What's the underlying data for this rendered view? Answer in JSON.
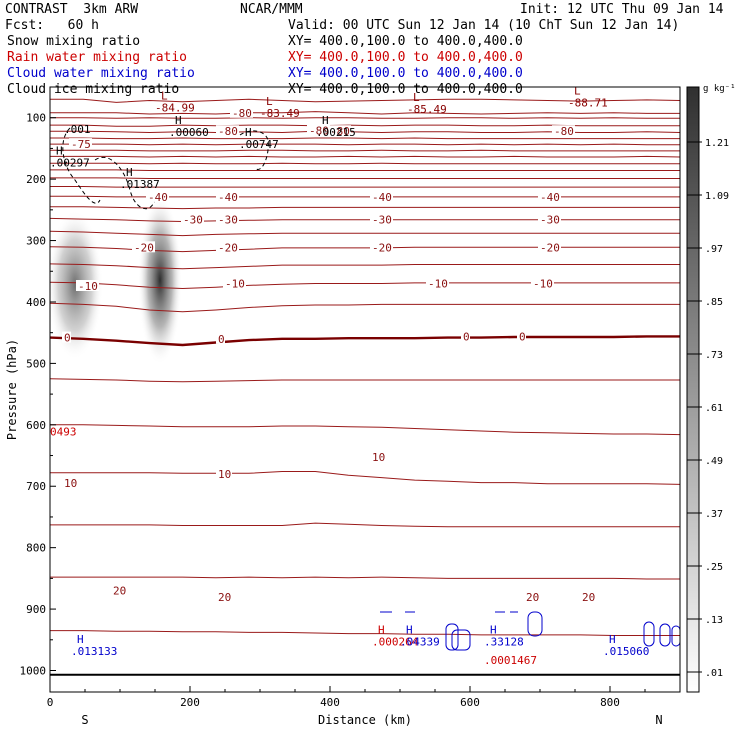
{
  "header": {
    "model": "CONTRAST  3km ARW",
    "org": "NCAR/MMM",
    "init": "Init: 12 UTC Thu 09 Jan 14",
    "fcst": "Fcst:   60 h",
    "valid": "Valid: 00 UTC Sun 12 Jan 14 (10 ChT Sun 12 Jan 14)",
    "fields": [
      {
        "name": "Snow mixing ratio",
        "xy": "XY= 400.0,100.0 to 400.0,400.0",
        "color": "#000000"
      },
      {
        "name": "Rain water mixing ratio",
        "xy": "XY= 400.0,100.0 to 400.0,400.0",
        "color": "#cc0000"
      },
      {
        "name": "Cloud water mixing ratio",
        "xy": "XY= 400.0,100.0 to 400.0,400.0",
        "color": "#0000cc"
      },
      {
        "name": "Cloud ice mixing ratio",
        "xy": "XY= 400.0,100.0 to 400.0,400.0",
        "color": "#000000"
      }
    ]
  },
  "chart_data": {
    "type": "contour-cross-section",
    "xlabel": "Distance (km)",
    "ylabel": "Pressure (hPa)",
    "x_ticks": [
      0,
      200,
      400,
      600,
      800
    ],
    "x_range": [
      0,
      900
    ],
    "y_ticks": [
      100,
      200,
      300,
      400,
      500,
      600,
      700,
      800,
      900,
      1000
    ],
    "y_range": [
      50,
      1035
    ],
    "x_end_labels": {
      "left": "S",
      "right": "N"
    },
    "colorbar": {
      "unit": "g kg⁻¹",
      "levels": [
        "1.21",
        "1.09",
        ".97",
        ".85",
        ".73",
        ".61",
        ".49",
        ".37",
        ".25",
        ".13",
        ".01"
      ]
    },
    "temperature_contours": [
      {
        "value": -80,
        "label": "-80",
        "p": [
          70,
          70,
          75,
          72,
          74,
          72,
          70,
          72,
          74,
          73,
          72,
          71,
          70,
          70,
          71,
          72,
          73,
          72,
          71,
          72
        ]
      },
      {
        "value": -80,
        "label": "-80",
        "p": [
          92,
          92,
          92,
          94,
          93,
          94,
          92,
          92,
          90,
          92,
          94,
          92,
          93,
          94,
          93,
          92,
          93,
          92,
          93,
          93
        ]
      },
      {
        "value": -80,
        "label": "-80",
        "p": [
          100,
          100,
          101,
          100,
          101,
          101,
          100,
          101,
          100,
          100,
          101,
          101,
          100,
          100,
          101,
          100,
          101,
          100,
          101,
          101
        ]
      },
      {
        "value": -80,
        "label": "-80",
        "p": [
          112,
          112,
          114,
          114,
          112,
          113,
          112,
          112,
          113,
          112,
          113,
          112,
          112,
          113,
          113,
          112,
          113,
          113,
          113,
          113
        ]
      },
      {
        "value": -80,
        "label": "-80",
        "p": [
          122,
          122,
          123,
          124,
          123,
          124,
          123,
          124,
          122,
          123,
          124,
          123,
          123,
          124,
          124,
          123,
          124,
          124,
          123,
          124
        ]
      },
      {
        "value": -80,
        "label": "-80",
        "p": [
          133,
          133,
          134,
          134,
          133,
          134,
          134,
          134,
          133,
          133,
          134,
          133,
          134,
          134,
          134,
          134,
          134,
          134,
          134,
          134
        ]
      },
      {
        "value": -75,
        "label": "-75",
        "p": [
          143,
          143,
          143,
          144,
          143,
          144,
          143,
          143,
          143,
          144,
          143,
          143,
          144,
          143,
          144,
          143,
          144,
          143,
          144,
          144
        ]
      },
      {
        "value": -70,
        "label": "",
        "p": [
          153,
          153,
          153,
          154,
          154,
          154,
          153,
          153,
          154,
          154,
          153,
          154,
          154,
          153,
          154,
          154,
          154,
          154,
          154,
          154
        ]
      },
      {
        "value": -65,
        "label": "",
        "p": [
          163,
          163,
          163,
          164,
          163,
          164,
          163,
          164,
          164,
          163,
          164,
          163,
          164,
          164,
          163,
          164,
          164,
          164,
          163,
          164
        ]
      },
      {
        "value": -60,
        "label": "",
        "p": [
          174,
          174,
          174,
          175,
          174,
          175,
          175,
          174,
          175,
          175,
          174,
          175,
          175,
          175,
          175,
          175,
          175,
          175,
          175,
          175
        ]
      },
      {
        "value": -55,
        "label": "",
        "p": [
          185,
          185,
          185,
          186,
          186,
          186,
          186,
          186,
          186,
          186,
          186,
          186,
          186,
          186,
          186,
          186,
          186,
          186,
          186,
          186
        ]
      },
      {
        "value": -50,
        "label": "",
        "p": [
          198,
          198,
          198,
          199,
          199,
          199,
          199,
          199,
          199,
          199,
          199,
          199,
          199,
          199,
          199,
          199,
          199,
          199,
          199,
          199
        ]
      },
      {
        "value": -45,
        "label": "",
        "p": [
          212,
          212,
          213,
          213,
          213,
          213,
          213,
          213,
          213,
          213,
          213,
          213,
          213,
          213,
          213,
          213,
          213,
          213,
          213,
          213
        ]
      },
      {
        "value": -40,
        "label": "-40",
        "p": [
          228,
          228,
          229,
          229,
          229,
          229,
          229,
          229,
          229,
          229,
          229,
          229,
          229,
          229,
          229,
          229,
          229,
          229,
          229,
          229
        ]
      },
      {
        "value": -35,
        "label": "",
        "p": [
          245,
          245,
          246,
          247,
          248,
          247,
          247,
          246,
          246,
          246,
          246,
          246,
          246,
          246,
          246,
          246,
          246,
          246,
          246,
          246
        ]
      },
      {
        "value": -30,
        "label": "-30",
        "p": [
          264,
          265,
          266,
          268,
          269,
          268,
          267,
          266,
          266,
          266,
          266,
          266,
          266,
          266,
          266,
          266,
          266,
          266,
          266,
          266
        ]
      },
      {
        "value": -25,
        "label": "",
        "p": [
          285,
          286,
          288,
          290,
          292,
          290,
          289,
          288,
          288,
          288,
          288,
          288,
          288,
          288,
          288,
          288,
          288,
          288,
          288,
          288
        ]
      },
      {
        "value": -20,
        "label": "-20",
        "p": [
          310,
          311,
          313,
          316,
          318,
          316,
          314,
          312,
          312,
          312,
          312,
          311,
          311,
          311,
          311,
          311,
          311,
          311,
          311,
          311
        ]
      },
      {
        "value": -15,
        "label": "",
        "p": [
          338,
          339,
          341,
          344,
          346,
          344,
          342,
          340,
          340,
          340,
          340,
          339,
          339,
          339,
          339,
          339,
          339,
          339,
          339,
          339
        ]
      },
      {
        "value": -10,
        "label": "-10",
        "p": [
          368,
          369,
          372,
          376,
          378,
          376,
          373,
          371,
          370,
          370,
          370,
          369,
          369,
          369,
          369,
          369,
          369,
          369,
          369,
          369
        ]
      },
      {
        "value": -5,
        "label": "",
        "p": [
          402,
          404,
          407,
          413,
          416,
          413,
          409,
          406,
          405,
          405,
          404,
          404,
          404,
          404,
          404,
          404,
          404,
          404,
          404,
          404
        ]
      },
      {
        "value": 0,
        "label": "0",
        "p": [
          458,
          460,
          463,
          467,
          470,
          466,
          462,
          460,
          460,
          459,
          459,
          459,
          458,
          458,
          457,
          457,
          457,
          457,
          456,
          456
        ]
      },
      {
        "value": 5,
        "label": "",
        "p": [
          525,
          526,
          527,
          529,
          530,
          529,
          528,
          527,
          527,
          527,
          527,
          527,
          527,
          527,
          527,
          527,
          527,
          527,
          527,
          527
        ]
      },
      {
        "value": 10,
        "label": "10",
        "p": [
          600,
          600,
          601,
          602,
          603,
          603,
          603,
          602,
          602,
          603,
          604,
          606,
          608,
          610,
          612,
          613,
          614,
          615,
          615,
          616
        ]
      },
      {
        "value": 15,
        "label": "",
        "p": [
          678,
          678,
          678,
          678,
          679,
          679,
          679,
          676,
          676,
          682,
          686,
          690,
          692,
          694,
          694,
          696,
          696,
          696,
          696,
          697
        ]
      },
      {
        "value": 20,
        "label": "20",
        "p": [
          763,
          763,
          763,
          763,
          764,
          764,
          764,
          764,
          760,
          762,
          764,
          765,
          766,
          766,
          766,
          766,
          766,
          766,
          766,
          766
        ]
      },
      {
        "value": 25,
        "label": "",
        "p": [
          848,
          848,
          848,
          848,
          848,
          849,
          848,
          849,
          848,
          849,
          848,
          849,
          850,
          850,
          850,
          850,
          850,
          850,
          851,
          851
        ]
      },
      {
        "value": 30,
        "label": "",
        "p": [
          935,
          935,
          936,
          936,
          937,
          937,
          938,
          938,
          939,
          940,
          940,
          941,
          941,
          942,
          942,
          942,
          942,
          943,
          943,
          943
        ]
      }
    ],
    "contour_labels": [
      {
        "text": "-75",
        "x": 30,
        "p": 143
      },
      {
        "text": "-80",
        "x": 260,
        "p": 92
      },
      {
        "text": "-80",
        "x": 240,
        "p": 122
      },
      {
        "text": "-80",
        "x": 400,
        "p": 122
      },
      {
        "text": "-80",
        "x": 720,
        "p": 122
      },
      {
        "text": "-80",
        "x": 370,
        "p": 121
      },
      {
        "text": "-40",
        "x": 140,
        "p": 229
      },
      {
        "text": "-40",
        "x": 240,
        "p": 229
      },
      {
        "text": "-40",
        "x": 460,
        "p": 229
      },
      {
        "text": "-40",
        "x": 700,
        "p": 229
      },
      {
        "text": "-30",
        "x": 190,
        "p": 266
      },
      {
        "text": "-30",
        "x": 240,
        "p": 266
      },
      {
        "text": "-30",
        "x": 460,
        "p": 266
      },
      {
        "text": "-30",
        "x": 700,
        "p": 266
      },
      {
        "text": "-20",
        "x": 120,
        "p": 311
      },
      {
        "text": "-20",
        "x": 240,
        "p": 311
      },
      {
        "text": "-20",
        "x": 460,
        "p": 311
      },
      {
        "text": "-20",
        "x": 700,
        "p": 311
      },
      {
        "text": "-10",
        "x": 40,
        "p": 374
      },
      {
        "text": "-10",
        "x": 250,
        "p": 370
      },
      {
        "text": "-10",
        "x": 540,
        "p": 370
      },
      {
        "text": "-10",
        "x": 690,
        "p": 370
      },
      {
        "text": "0",
        "x": 20,
        "p": 458
      },
      {
        "text": "0",
        "x": 240,
        "p": 460
      },
      {
        "text": "0",
        "x": 590,
        "p": 456
      },
      {
        "text": "0",
        "x": 670,
        "p": 456
      },
      {
        "text": "10",
        "x": 20,
        "p": 695
      },
      {
        "text": "10",
        "x": 240,
        "p": 680
      },
      {
        "text": "10",
        "x": 460,
        "p": 652
      },
      {
        "text": "20",
        "x": 240,
        "p": 880
      },
      {
        "text": "20",
        "x": 680,
        "p": 880
      },
      {
        "text": "20",
        "x": 760,
        "p": 880
      },
      {
        "text": "20",
        "x": 90,
        "p": 870
      }
    ],
    "extrema": [
      {
        "mark": "L",
        "value": "-84.99",
        "x": 150,
        "p": 75,
        "color": "#880000"
      },
      {
        "mark": "L",
        "value": "-83.49",
        "x": 300,
        "p": 84,
        "color": "#880000"
      },
      {
        "mark": "L",
        "value": "-85.49",
        "x": 510,
        "p": 78,
        "color": "#880000"
      },
      {
        "mark": "L",
        "value": "-88.71",
        "x": 740,
        "p": 67,
        "color": "#880000"
      },
      {
        "mark": "",
        "value": ".001",
        "x": 20,
        "p": 110,
        "color": "#000000"
      },
      {
        "mark": "H",
        "value": ".00060",
        "x": 170,
        "p": 115,
        "color": "#000000"
      },
      {
        "mark": "H",
        "value": ".00747",
        "x": 270,
        "p": 135,
        "color": "#000000"
      },
      {
        "mark": "H",
        "value": ".00215",
        "x": 380,
        "p": 115,
        "color": "#000000"
      },
      {
        "mark": "H",
        "value": ".00297",
        "x": 0,
        "p": 165,
        "color": "#000000"
      },
      {
        "mark": "H",
        "value": ".01387",
        "x": 100,
        "p": 200,
        "color": "#000000"
      },
      {
        "mark": "",
        "value": "0493",
        "x": 0,
        "p": 603,
        "color": "#cc0000"
      },
      {
        "mark": "H",
        "value": ".013133",
        "x": 30,
        "p": 960,
        "color": "#0000cc"
      },
      {
        "mark": "H",
        "value": ".000264",
        "x": 460,
        "p": 945,
        "color": "#cc0000"
      },
      {
        "mark": "H",
        "value": ".04339",
        "x": 500,
        "p": 945,
        "color": "#0000cc"
      },
      {
        "mark": "H",
        "value": ".33128",
        "x": 620,
        "p": 945,
        "color": "#0000cc"
      },
      {
        "mark": "",
        "value": ".0001467",
        "x": 620,
        "p": 975,
        "color": "#cc0000"
      },
      {
        "mark": "H",
        "value": ".015060",
        "x": 790,
        "p": 960,
        "color": "#0000cc"
      }
    ]
  }
}
